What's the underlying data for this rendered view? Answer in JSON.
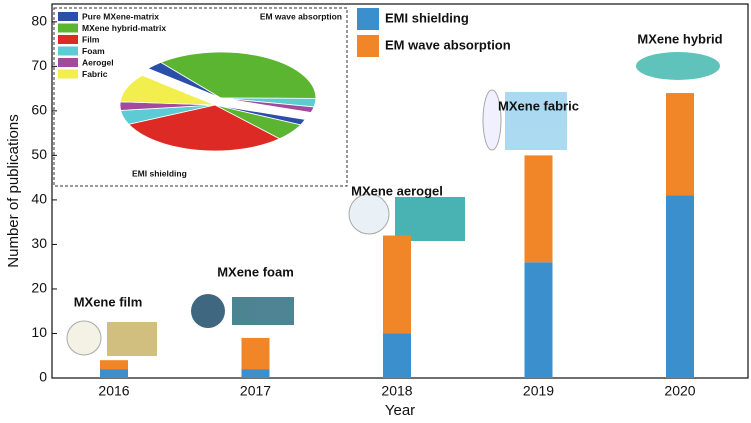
{
  "chart_data": [
    {
      "type": "bar",
      "stacked": true,
      "x_label": "Year",
      "y_label": "Number of publications",
      "categories": [
        "2016",
        "2017",
        "2018",
        "2019",
        "2020"
      ],
      "series": [
        {
          "name": "EMI shielding",
          "color": "#3b8fcc",
          "values": [
            2,
            2,
            10,
            26,
            41
          ]
        },
        {
          "name": "EM wave absorption",
          "color": "#f08628",
          "values": [
            2,
            7,
            22,
            24,
            23
          ]
        }
      ],
      "annotations": [
        "MXene film",
        "MXene foam",
        "MXene aerogel",
        "MXene fabric",
        "MXene hybrid"
      ],
      "ylim": [
        0,
        84
      ],
      "yticks": [
        0,
        10,
        20,
        30,
        40,
        50,
        60,
        70,
        80
      ]
    },
    {
      "type": "pie",
      "categories": [
        "Pure MXene-matrix",
        "MXene hybrid-matrix",
        "Film",
        "Foam",
        "Aerogel",
        "Fabric"
      ],
      "colors": [
        "#2b4fa8",
        "#5cb531",
        "#dd2a25",
        "#5ccbd4",
        "#a24a9c",
        "#f2ee4d"
      ],
      "groups": [
        {
          "name": "EM wave absorption",
          "values": [
            3,
            36,
            0,
            3,
            2,
            0
          ]
        },
        {
          "name": "EMI shielding",
          "values": [
            2,
            6,
            30,
            5,
            3,
            10
          ]
        }
      ]
    }
  ]
}
